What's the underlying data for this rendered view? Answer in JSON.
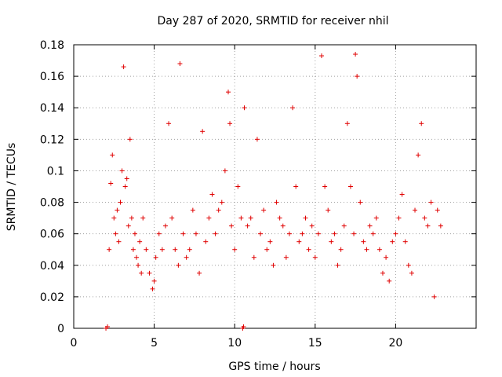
{
  "chart_data": {
    "type": "scatter",
    "title": "Day 287 of 2020, SRMTID for receiver nhil",
    "xlabel": "GPS time / hours",
    "ylabel": "SRMTID / TECUs",
    "xlim": [
      0,
      25
    ],
    "ylim": [
      0,
      0.18
    ],
    "xticks": [
      "0",
      "5",
      "10",
      "15",
      "20"
    ],
    "xtick_values": [
      0,
      5,
      10,
      15,
      20
    ],
    "yticks": [
      "0",
      "0.02",
      "0.04",
      "0.06",
      "0.08",
      "0.1",
      "0.12",
      "0.14",
      "0.16",
      "0.18"
    ],
    "ytick_values": [
      0,
      0.02,
      0.04,
      0.06,
      0.08,
      0.1,
      0.12,
      0.14,
      0.16,
      0.18
    ],
    "grid": true,
    "marker": "+",
    "color": "#e00000",
    "series": [
      {
        "x": [
          2.0,
          2.1,
          10.5,
          10.55
        ],
        "y": [
          0.0,
          0.001,
          0.0,
          0.001
        ]
      },
      {
        "x": [
          2.2,
          2.3,
          2.4,
          2.5,
          2.6,
          2.7,
          2.8,
          2.9,
          3.0,
          3.1,
          3.2,
          3.3,
          3.4,
          3.5,
          3.6,
          3.7,
          3.8,
          3.9,
          4.0,
          4.1,
          4.2,
          4.3,
          4.5,
          4.7,
          4.9,
          5.0,
          5.1,
          5.3,
          5.5,
          5.7,
          5.9,
          6.1,
          6.3,
          6.5,
          6.6,
          6.8,
          7.0,
          7.2,
          7.4,
          7.6,
          7.8,
          8.0,
          8.2,
          8.4,
          8.6,
          8.8,
          9.0,
          9.2,
          9.4,
          9.6,
          9.7,
          9.8,
          10.0,
          10.2,
          10.4,
          10.6,
          10.8,
          11.0,
          11.2,
          11.4,
          11.6,
          11.8,
          12.0,
          12.2,
          12.4,
          12.6,
          12.8,
          13.0,
          13.2,
          13.4,
          13.6,
          13.8,
          14.0,
          14.2,
          14.4,
          14.6,
          14.8,
          15.0,
          15.2,
          15.4,
          15.6,
          15.8,
          16.0,
          16.2,
          16.4,
          16.6,
          16.8,
          17.0,
          17.2,
          17.4,
          17.5,
          17.6,
          17.8,
          18.0,
          18.2,
          18.4,
          18.6,
          18.8,
          19.0,
          19.2,
          19.4,
          19.6,
          19.8,
          20.0,
          20.2,
          20.4,
          20.6,
          20.8,
          21.0,
          21.2,
          21.4,
          21.6,
          21.8,
          22.0,
          22.2,
          22.4,
          22.6,
          22.8
        ],
        "y": [
          0.05,
          0.092,
          0.11,
          0.07,
          0.06,
          0.075,
          0.055,
          0.08,
          0.1,
          0.166,
          0.09,
          0.095,
          0.065,
          0.12,
          0.07,
          0.05,
          0.06,
          0.045,
          0.04,
          0.055,
          0.035,
          0.07,
          0.05,
          0.035,
          0.025,
          0.03,
          0.045,
          0.06,
          0.05,
          0.065,
          0.13,
          0.07,
          0.05,
          0.04,
          0.168,
          0.06,
          0.045,
          0.05,
          0.075,
          0.06,
          0.035,
          0.125,
          0.055,
          0.07,
          0.085,
          0.06,
          0.075,
          0.08,
          0.1,
          0.15,
          0.13,
          0.065,
          0.05,
          0.09,
          0.07,
          0.14,
          0.065,
          0.07,
          0.045,
          0.12,
          0.06,
          0.075,
          0.05,
          0.055,
          0.04,
          0.08,
          0.07,
          0.065,
          0.045,
          0.06,
          0.14,
          0.09,
          0.055,
          0.06,
          0.07,
          0.05,
          0.065,
          0.045,
          0.06,
          0.173,
          0.09,
          0.075,
          0.055,
          0.06,
          0.04,
          0.05,
          0.065,
          0.13,
          0.09,
          0.06,
          0.174,
          0.16,
          0.08,
          0.055,
          0.05,
          0.065,
          0.06,
          0.07,
          0.05,
          0.035,
          0.045,
          0.03,
          0.055,
          0.06,
          0.07,
          0.085,
          0.055,
          0.04,
          0.035,
          0.075,
          0.11,
          0.13,
          0.07,
          0.065,
          0.08,
          0.02,
          0.075,
          0.065
        ]
      }
    ]
  }
}
